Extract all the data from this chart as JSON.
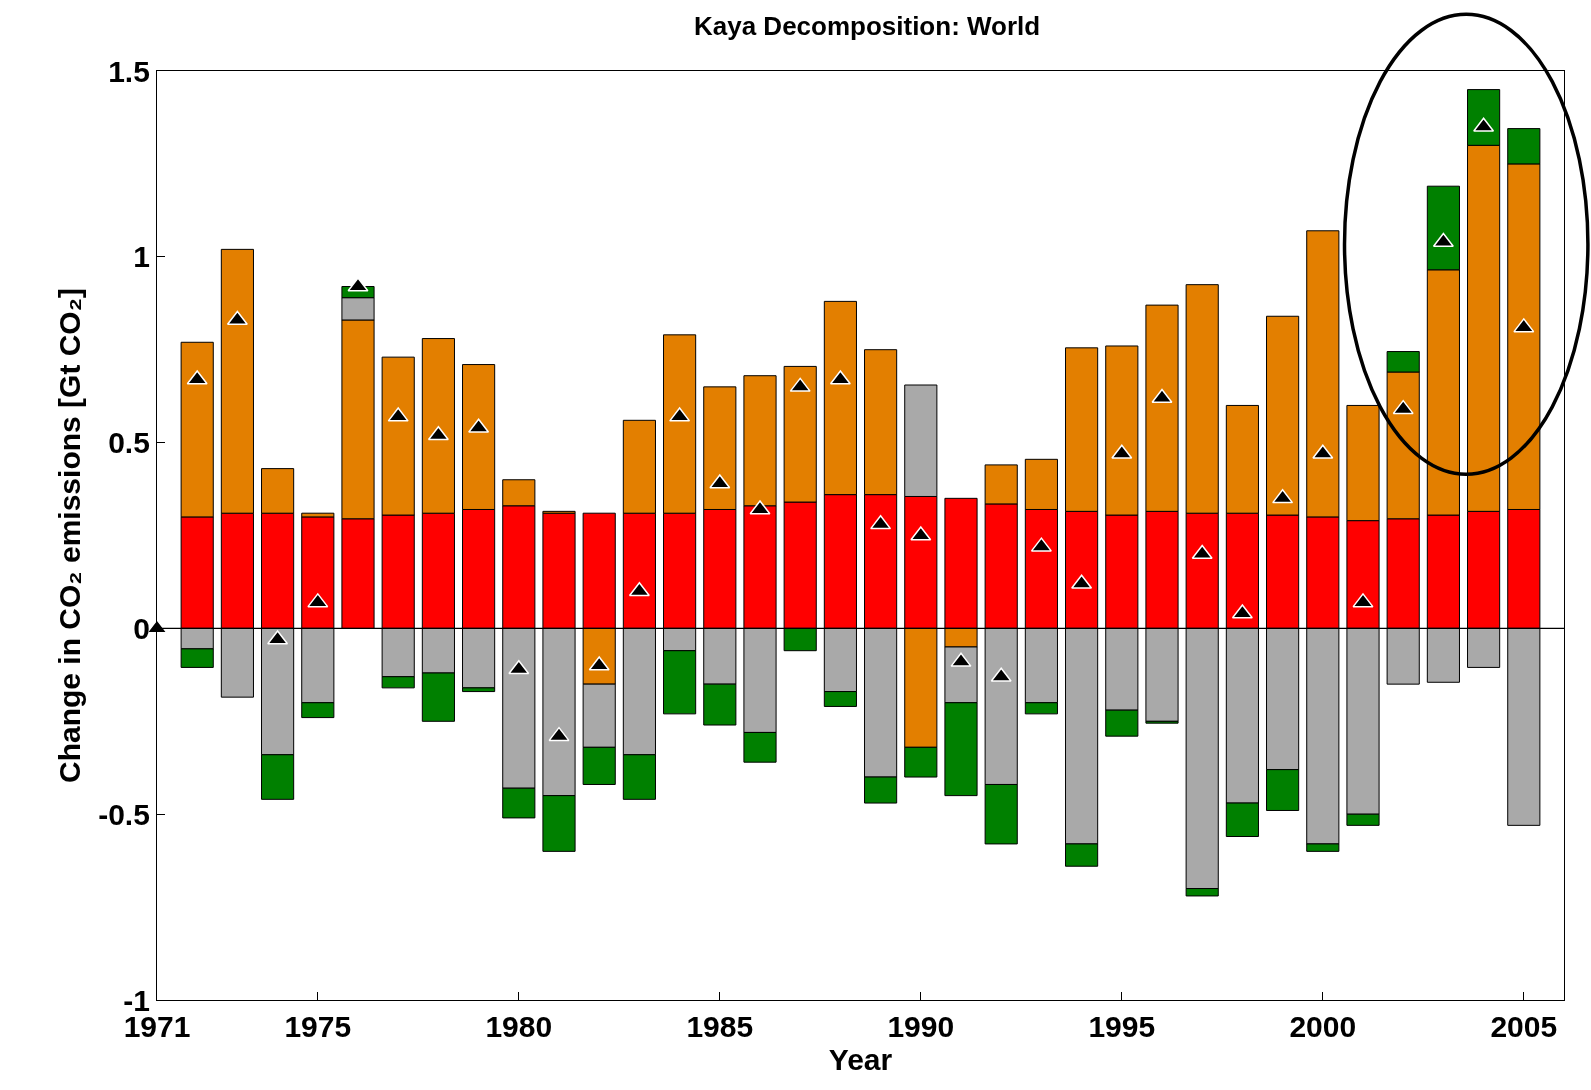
{
  "chart_data": {
    "type": "bar",
    "title": "Kaya Decomposition: World",
    "xlabel": "Year",
    "ylabel": "Change in CO₂ emissions [Gt CO₂]",
    "x": [
      1972,
      1973,
      1974,
      1975,
      1976,
      1977,
      1978,
      1979,
      1980,
      1981,
      1982,
      1983,
      1984,
      1985,
      1986,
      1987,
      1988,
      1989,
      1990,
      1991,
      1992,
      1993,
      1994,
      1995,
      1996,
      1997,
      1998,
      1999,
      2000,
      2001,
      2002,
      2003,
      2004,
      2005
    ],
    "stacked": true,
    "series": [
      {
        "color": "#ff0000",
        "values": [
          0.3,
          0.31,
          0.31,
          0.3,
          0.295,
          0.305,
          0.31,
          0.32,
          0.33,
          0.31,
          0.31,
          0.31,
          0.31,
          0.32,
          0.33,
          0.34,
          0.36,
          0.36,
          0.355,
          0.35,
          0.335,
          0.32,
          0.315,
          0.305,
          0.315,
          0.31,
          0.31,
          0.305,
          0.3,
          0.29,
          0.295,
          0.305,
          0.315,
          0.32
        ]
      },
      {
        "color": "#e37f00",
        "values": [
          0.47,
          0.71,
          0.12,
          0.01,
          0.535,
          0.425,
          0.47,
          0.39,
          0.07,
          0.005,
          -0.15,
          0.25,
          0.48,
          0.33,
          0.35,
          0.365,
          0.52,
          0.39,
          -0.32,
          -0.05,
          0.105,
          0.135,
          0.44,
          0.455,
          0.555,
          0.615,
          0.29,
          0.535,
          0.77,
          0.31,
          0.395,
          0.66,
          0.985,
          0.93
        ]
      },
      {
        "color": "#a9a9a9",
        "values": [
          -0.055,
          -0.185,
          -0.34,
          -0.2,
          0.06,
          -0.13,
          -0.12,
          -0.16,
          -0.43,
          -0.45,
          -0.17,
          -0.34,
          -0.06,
          -0.15,
          -0.28,
          null,
          -0.17,
          -0.4,
          0.3,
          -0.15,
          -0.42,
          -0.2,
          -0.58,
          -0.22,
          -0.25,
          -0.7,
          -0.47,
          -0.38,
          -0.58,
          -0.5,
          -0.15,
          -0.145,
          -0.105,
          -0.53
        ]
      },
      {
        "color": "#008000",
        "values": [
          -0.05,
          null,
          -0.12,
          -0.04,
          0.03,
          -0.03,
          -0.13,
          -0.01,
          -0.08,
          -0.15,
          -0.1,
          -0.12,
          -0.17,
          -0.11,
          -0.08,
          -0.06,
          -0.04,
          -0.07,
          -0.08,
          -0.25,
          -0.16,
          -0.03,
          -0.06,
          -0.07,
          -0.005,
          -0.02,
          -0.09,
          -0.11,
          -0.02,
          -0.03,
          0.055,
          0.225,
          0.15,
          0.095
        ]
      },
      {
        "type": "scatter",
        "color": "#000000",
        "marker": "triangle",
        "x": [
          1971,
          1972,
          1973,
          1974,
          1975,
          1976,
          1977,
          1978,
          1979,
          1980,
          1981,
          1982,
          1983,
          1984,
          1985,
          1986,
          1987,
          1988,
          1989,
          1990,
          1991,
          1992,
          1993,
          1994,
          1995,
          1996,
          1997,
          1998,
          1999,
          2000,
          2001,
          2002,
          2003,
          2004,
          2005
        ],
        "values": [
          0,
          0.67,
          0.83,
          -0.03,
          0.07,
          0.92,
          0.57,
          0.52,
          0.54,
          -0.11,
          -0.29,
          -0.1,
          0.1,
          0.57,
          0.39,
          0.32,
          0.65,
          0.67,
          0.28,
          0.25,
          -0.09,
          -0.13,
          0.22,
          0.12,
          0.47,
          0.62,
          0.2,
          0.04,
          0.35,
          0.47,
          0.07,
          0.59,
          1.04,
          1.35,
          0.81
        ]
      }
    ],
    "xlim": [
      1971,
      2006
    ],
    "xticks": [
      1971,
      1975,
      1980,
      1985,
      1990,
      1995,
      2000,
      2005
    ],
    "ylim": [
      -1,
      1.5
    ],
    "yticks": [
      -1,
      -0.5,
      0,
      0.5,
      1,
      1.5
    ],
    "ref_lines": [
      {
        "axis": "y",
        "value": 0,
        "color": "#000000"
      }
    ]
  }
}
